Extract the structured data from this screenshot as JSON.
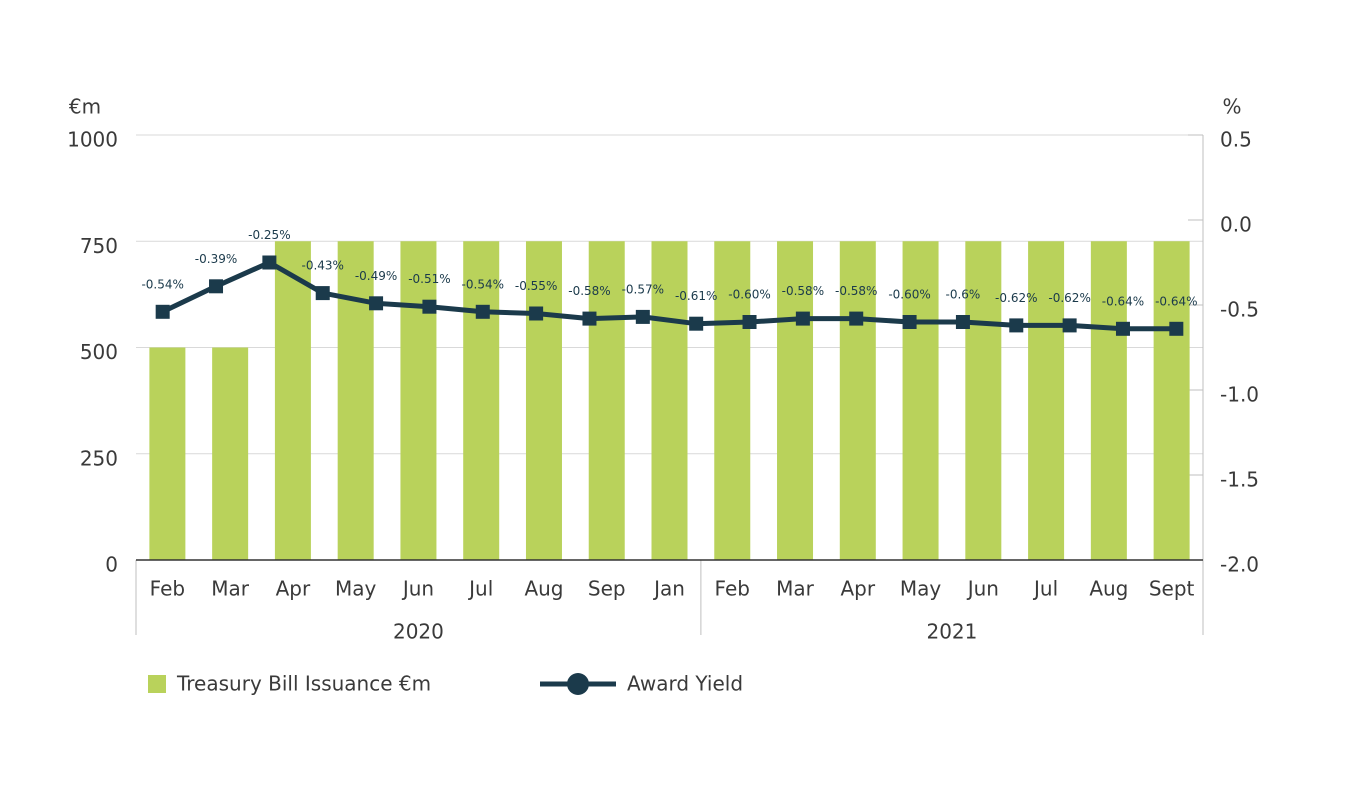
{
  "chart_data": [
    {
      "type": "bar",
      "name": "Treasury Bill Issuance €m",
      "y_label": "€m",
      "color": "#b9d25b",
      "ylim": [
        0,
        1000
      ],
      "yticks": [
        0,
        250,
        500,
        750,
        1000
      ],
      "grid": true,
      "groups": [
        {
          "label": "2020",
          "categories": [
            "Feb",
            "Mar",
            "Apr",
            "May",
            "Jun",
            "Jul",
            "Aug",
            "Sep",
            "Jan"
          ],
          "values": [
            500,
            500,
            750,
            750,
            750,
            750,
            750,
            750,
            750
          ]
        },
        {
          "label": "2021",
          "categories": [
            "Feb",
            "Mar",
            "Apr",
            "May",
            "Jun",
            "Jul",
            "Aug",
            "Sept"
          ],
          "values": [
            750,
            750,
            750,
            750,
            750,
            750,
            750,
            750
          ]
        }
      ]
    },
    {
      "type": "line",
      "name": "Award Yield",
      "y_label": "%",
      "color": "#1b3a4b",
      "ylim": [
        -2,
        0.5
      ],
      "yticks": [
        {
          "value": -2,
          "label": "-2.0"
        },
        -1.5,
        {
          "value": -1,
          "label": "-1.0"
        },
        -0.5,
        {
          "value": 0,
          "label": "0.0"
        },
        0.5
      ],
      "values": [
        -0.54,
        -0.39,
        -0.25,
        -0.43,
        -0.49,
        -0.51,
        -0.54,
        -0.55,
        -0.58,
        -0.57,
        -0.61,
        -0.6,
        -0.58,
        -0.58,
        -0.6,
        -0.6,
        -0.62,
        -0.62,
        -0.64,
        -0.64
      ],
      "value_labels": [
        "-0.54%",
        "-0.39%",
        "-0.25%",
        "-0.43%",
        "-0.49%",
        "-0.51%",
        "-0.54%",
        "-0.55%",
        "-0.58%",
        "-0.57%",
        "-0.61%",
        "-0.60%",
        "-0.58%",
        "-0.58%",
        "-0.60%",
        "-0.6%",
        "-0.62%",
        "-0.62%",
        "-0.64%",
        "-0.64%"
      ]
    }
  ]
}
